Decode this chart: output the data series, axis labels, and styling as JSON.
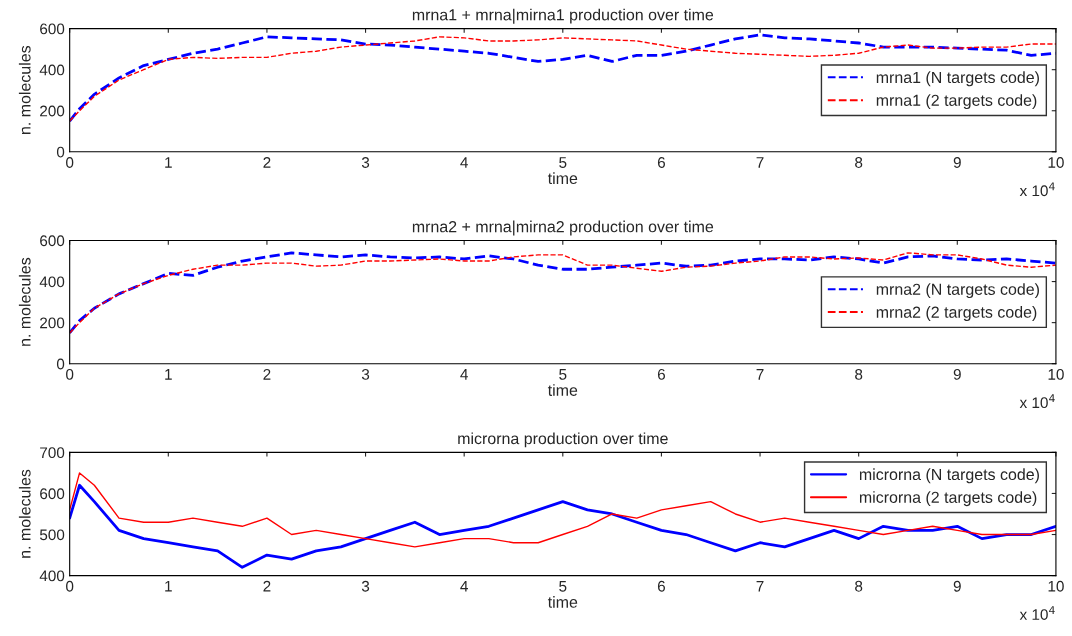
{
  "chart_data": [
    {
      "type": "line",
      "title": "mrna1 + mrna|mirna1 production over time",
      "xlabel": "time",
      "ylabel": "n. molecules",
      "annotations": [
        "x 10$^{4}$"
      ],
      "x": [
        0,
        0.1,
        0.25,
        0.5,
        0.75,
        1,
        1.25,
        1.5,
        1.75,
        2,
        2.25,
        2.5,
        2.75,
        3,
        3.25,
        3.5,
        3.75,
        4,
        4.25,
        4.5,
        4.75,
        5,
        5.25,
        5.5,
        5.75,
        6,
        6.25,
        6.5,
        6.75,
        7,
        7.25,
        7.5,
        7.75,
        8,
        8.25,
        8.5,
        8.75,
        9,
        9.25,
        9.5,
        9.75,
        10
      ],
      "series": [
        {
          "name": "mrna1 (N targets code)",
          "color": "#0000ff",
          "values": [
            150,
            210,
            280,
            360,
            420,
            450,
            480,
            500,
            530,
            560,
            555,
            550,
            545,
            525,
            520,
            510,
            500,
            490,
            480,
            460,
            440,
            450,
            470,
            440,
            470,
            470,
            490,
            520,
            550,
            570,
            555,
            550,
            540,
            530,
            510,
            510,
            510,
            505,
            500,
            495,
            470,
            480
          ]
        },
        {
          "name": "mrna1 (2 targets code)",
          "color": "#ff0000",
          "values": [
            150,
            200,
            270,
            350,
            400,
            450,
            460,
            455,
            460,
            460,
            480,
            490,
            510,
            520,
            530,
            540,
            560,
            555,
            540,
            540,
            545,
            555,
            550,
            545,
            540,
            520,
            500,
            490,
            480,
            475,
            470,
            465,
            470,
            480,
            510,
            520,
            505,
            505,
            510,
            510,
            525,
            525
          ]
        }
      ],
      "xlim": [
        0,
        10
      ],
      "xticks": [
        0,
        1,
        2,
        3,
        4,
        5,
        6,
        7,
        8,
        9,
        10
      ],
      "ylim": [
        0,
        600
      ],
      "yticks": [
        0,
        200,
        400,
        600
      ],
      "legend": "right",
      "line_style": "dashed"
    },
    {
      "type": "line",
      "title": "mrna2 + mrna|mirna2 production over time",
      "xlabel": "time",
      "ylabel": "n. molecules",
      "annotations": [
        "x 10$^{4}$"
      ],
      "x": [
        0,
        0.1,
        0.25,
        0.5,
        0.75,
        1,
        1.25,
        1.5,
        1.75,
        2,
        2.25,
        2.5,
        2.75,
        3,
        3.25,
        3.5,
        3.75,
        4,
        4.25,
        4.5,
        4.75,
        5,
        5.25,
        5.5,
        5.75,
        6,
        6.25,
        6.5,
        6.75,
        7,
        7.25,
        7.5,
        7.75,
        8,
        8.25,
        8.5,
        8.75,
        9,
        9.25,
        9.5,
        9.75,
        10
      ],
      "series": [
        {
          "name": "mrna2 (N targets code)",
          "color": "#0000ff",
          "values": [
            150,
            210,
            270,
            340,
            390,
            440,
            430,
            470,
            500,
            520,
            540,
            530,
            520,
            530,
            520,
            515,
            520,
            510,
            525,
            510,
            480,
            460,
            460,
            470,
            480,
            490,
            475,
            480,
            500,
            510,
            510,
            505,
            520,
            510,
            490,
            520,
            525,
            510,
            505,
            510,
            500,
            490
          ]
        },
        {
          "name": "mrna2 (2 targets code)",
          "color": "#ff0000",
          "values": [
            150,
            200,
            270,
            340,
            390,
            430,
            460,
            480,
            480,
            490,
            490,
            475,
            480,
            500,
            500,
            505,
            510,
            500,
            500,
            520,
            530,
            530,
            480,
            480,
            465,
            450,
            470,
            475,
            490,
            500,
            520,
            520,
            510,
            515,
            505,
            540,
            530,
            530,
            510,
            480,
            470,
            480
          ]
        }
      ],
      "xlim": [
        0,
        10
      ],
      "xticks": [
        0,
        1,
        2,
        3,
        4,
        5,
        6,
        7,
        8,
        9,
        10
      ],
      "ylim": [
        0,
        600
      ],
      "yticks": [
        0,
        200,
        400,
        600
      ],
      "legend": "right",
      "line_style": "dashed"
    },
    {
      "type": "line",
      "title": "microrna production over time",
      "xlabel": "time",
      "ylabel": "n. molecules",
      "annotations": [
        "x 10$^{4}$"
      ],
      "x": [
        0,
        0.1,
        0.25,
        0.5,
        0.75,
        1,
        1.25,
        1.5,
        1.75,
        2,
        2.25,
        2.5,
        2.75,
        3,
        3.25,
        3.5,
        3.75,
        4,
        4.25,
        4.5,
        4.75,
        5,
        5.25,
        5.5,
        5.75,
        6,
        6.25,
        6.5,
        6.75,
        7,
        7.25,
        7.5,
        7.75,
        8,
        8.25,
        8.5,
        8.75,
        9,
        9.25,
        9.5,
        9.75,
        10
      ],
      "series": [
        {
          "name": "microrna (N targets code)",
          "color": "#0000ff",
          "values": [
            540,
            620,
            580,
            510,
            490,
            480,
            470,
            460,
            420,
            450,
            440,
            460,
            470,
            490,
            510,
            530,
            500,
            510,
            520,
            540,
            560,
            580,
            560,
            550,
            530,
            510,
            500,
            480,
            460,
            480,
            470,
            490,
            510,
            490,
            520,
            510,
            510,
            520,
            490,
            500,
            500,
            520
          ]
        },
        {
          "name": "microrna (2 targets code)",
          "color": "#ff0000",
          "values": [
            560,
            650,
            620,
            540,
            530,
            530,
            540,
            530,
            520,
            540,
            500,
            510,
            500,
            490,
            480,
            470,
            480,
            490,
            490,
            480,
            480,
            500,
            520,
            550,
            540,
            560,
            570,
            580,
            550,
            530,
            540,
            530,
            520,
            510,
            500,
            510,
            520,
            510,
            500,
            500,
            500,
            510
          ]
        }
      ],
      "xlim": [
        0,
        10
      ],
      "xticks": [
        0,
        1,
        2,
        3,
        4,
        5,
        6,
        7,
        8,
        9,
        10
      ],
      "ylim": [
        400,
        700
      ],
      "yticks": [
        400,
        500,
        600,
        700
      ],
      "legend": "top right",
      "line_style": "solid"
    }
  ]
}
